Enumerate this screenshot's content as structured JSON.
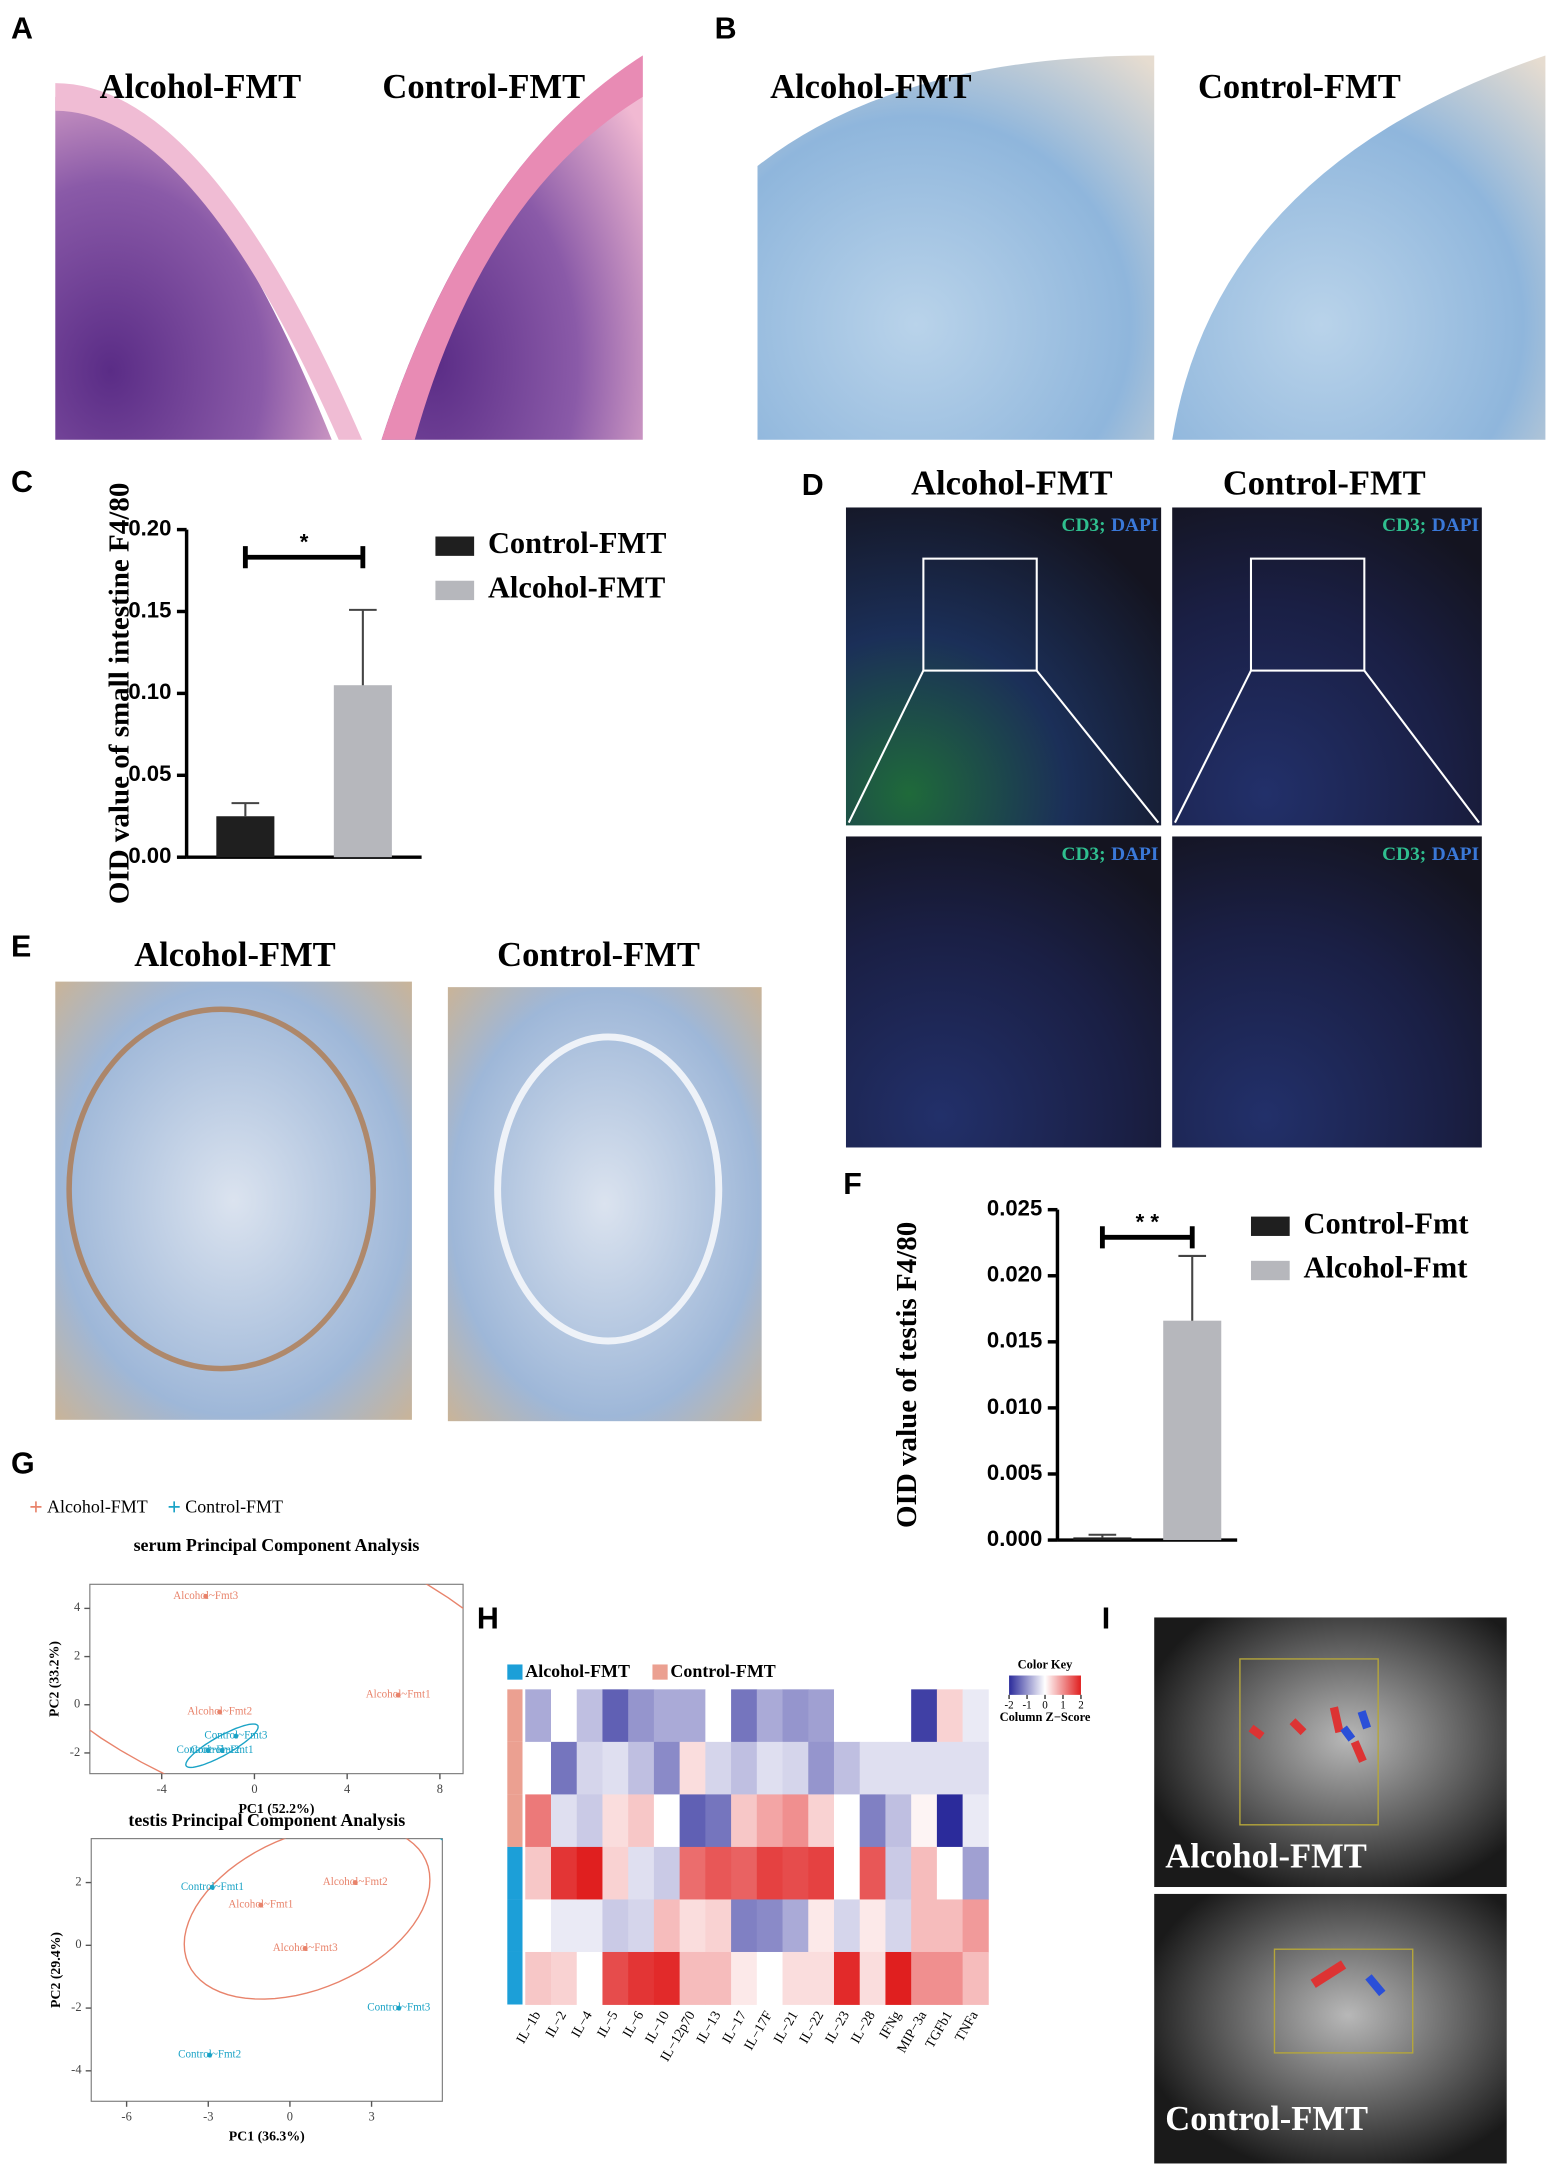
{
  "panel_labels": [
    "A",
    "B",
    "C",
    "D",
    "E",
    "F",
    "G",
    "H",
    "I"
  ],
  "panel_A": {
    "captions": [
      "Alcohol-FMT",
      "Control-FMT"
    ]
  },
  "panel_B": {
    "captions": [
      "Alcohol-FMT",
      "Control-FMT"
    ]
  },
  "panel_D": {
    "captions": [
      "Alcohol-FMT",
      "Control-FMT"
    ],
    "stains": [
      {
        "marker": "CD3;",
        "dye": "DAPI"
      },
      {
        "marker": "CD3;",
        "dye": "DAPI"
      },
      {
        "marker": "CD3;",
        "dye": "DAPI"
      },
      {
        "marker": "CD3;",
        "dye": "DAPI"
      }
    ]
  },
  "panel_E": {
    "captions": [
      "Alcohol-FMT",
      "Control-FMT"
    ]
  },
  "panel_I": {
    "captions": [
      "Alcohol-FMT",
      "Control-FMT"
    ]
  },
  "chart_data": [
    {
      "type": "bar",
      "y_label": "OID value of small intestine F4/80",
      "categories": [
        null,
        null
      ],
      "series": [
        {
          "name": "Control-FMT",
          "color": "#1f1f1f",
          "values": [
            0.025,
            null
          ],
          "errors": [
            0.008,
            null
          ]
        },
        {
          "name": "Alcohol-FMT",
          "color": "#b6b7bc",
          "values": [
            null,
            0.105
          ],
          "errors": [
            null,
            0.046
          ]
        }
      ],
      "ylim": [
        0,
        0.2
      ],
      "yticks": [
        {
          "value": 0,
          "label": "0.00"
        },
        {
          "value": 0.05,
          "label": "0.05"
        },
        {
          "value": 0.1,
          "label": "0.10"
        },
        {
          "value": 0.15,
          "label": "0.15"
        },
        {
          "value": 0.2,
          "label": "0.20"
        }
      ],
      "annotation": "*"
    },
    {
      "type": "bar",
      "y_label": "OID value of testis F4/80",
      "categories": [
        null,
        null
      ],
      "series": [
        {
          "name": "Control-Fmt",
          "color": "#1f1f1f",
          "values": [
            0.0002,
            null
          ],
          "errors": [
            0.0002,
            null
          ]
        },
        {
          "name": "Alcohol-Fmt",
          "color": "#b6b7bc",
          "values": [
            null,
            0.0166
          ],
          "errors": [
            null,
            0.0049
          ]
        }
      ],
      "ylim": [
        0,
        0.025
      ],
      "yticks": [
        {
          "value": 0,
          "label": "0.000"
        },
        {
          "value": 0.005,
          "label": "0.005"
        },
        {
          "value": 0.01,
          "label": "0.010"
        },
        {
          "value": 0.015,
          "label": "0.015"
        },
        {
          "value": 0.02,
          "label": "0.020"
        },
        {
          "value": 0.025,
          "label": "0.025"
        }
      ],
      "annotation": "* *"
    },
    {
      "type": "scatter",
      "title": "serum Principal Component Analysis",
      "x_label": "PC1 (52.2%)",
      "y_label": "PC2 (33.2%)",
      "xlim": [
        -7.1,
        9.0
      ],
      "ylim": [
        -2.86,
        5.0
      ],
      "xticks": [
        -4,
        0,
        4,
        8
      ],
      "yticks": [
        -2,
        0,
        2,
        4
      ],
      "series": [
        {
          "name": "Alcohol-FMT",
          "color": "#e8836b",
          "x": [
            6.2,
            -1.5,
            -2.1
          ],
          "values": [
            0.4,
            -0.3,
            4.5
          ],
          "labels": [
            "Alcohol~Fmt1",
            "Alcohol~Fmt2",
            "Alcohol~Fmt3"
          ]
        },
        {
          "name": "Control-FMT",
          "color": "#1ba3c6",
          "x": [
            -1.4,
            -2.0,
            -0.8
          ],
          "values": [
            -1.9,
            -1.9,
            -1.3
          ],
          "labels": [
            "Control~Fmt1",
            "Control~Fmt2",
            "Control~Fmt3"
          ]
        }
      ]
    },
    {
      "type": "scatter",
      "title": "testis Principal Component Analysis",
      "x_label": "PC1 (36.3%)",
      "y_label": "PC2 (29.4%)",
      "xlim": [
        -7.3,
        5.6
      ],
      "ylim": [
        -4.97,
        3.4
      ],
      "xticks": [
        -6,
        -3,
        0,
        3
      ],
      "yticks": [
        -4,
        -2,
        0,
        2
      ],
      "series": [
        {
          "color": "#e8836b",
          "x": [
            -1.07,
            2.4,
            0.56
          ],
          "values": [
            1.28,
            2.0,
            -0.1
          ],
          "labels": [
            "Alcohol~Fmt1",
            "Alcohol~Fmt2",
            "Alcohol~Fmt3"
          ]
        },
        {
          "color": "#1ba3c6",
          "x": [
            -2.85,
            -2.95,
            4.0
          ],
          "values": [
            1.85,
            -3.5,
            -2.0
          ],
          "labels": [
            "Control~Fmt1",
            "Control~Fmt2",
            "Control~Fmt3"
          ]
        }
      ]
    },
    {
      "type": "heatmap",
      "groups": [
        {
          "name": "Alcohol-FMT",
          "color": "#1c9fd8"
        },
        {
          "name": "Control-FMT",
          "color": "#eba091"
        }
      ],
      "columns": [
        "IL−1b",
        "IL−2",
        "IL−4",
        "IL−5",
        "IL−6",
        "IL−10",
        "IL−12p70",
        "IL−13",
        "IL−17",
        "IL−17F",
        "IL−21",
        "IL−22",
        "IL−23",
        "IL−28",
        "IFNg",
        "MIP−3a",
        "TGFb1",
        "TNFa"
      ],
      "rows": [
        {
          "group": "Control-FMT",
          "values": [
            -0.8,
            0,
            -0.6,
            -1.5,
            -1.0,
            -0.8,
            -0.8,
            0,
            -1.3,
            -0.8,
            -1.0,
            -0.9,
            0,
            0,
            0,
            -1.8,
            0.4,
            -0.2
          ]
        },
        {
          "group": "Control-FMT",
          "values": [
            0,
            -1.3,
            -0.4,
            -0.3,
            -0.6,
            -1.1,
            0.3,
            -0.4,
            -0.6,
            -0.3,
            -0.4,
            -1.0,
            -0.6,
            -0.3,
            -0.3,
            -0.3,
            -0.3,
            -0.3
          ]
        },
        {
          "group": "Control-FMT",
          "values": [
            1.2,
            -0.3,
            -0.5,
            0.3,
            0.5,
            0,
            -1.5,
            -1.3,
            0.5,
            0.8,
            1.0,
            0.4,
            0,
            -1.2,
            -0.6,
            0.1,
            -2.0,
            -0.2
          ]
        },
        {
          "group": "Alcohol-FMT",
          "values": [
            0.5,
            1.8,
            2.0,
            0.4,
            -0.3,
            -0.5,
            1.3,
            1.5,
            1.4,
            1.7,
            1.6,
            1.7,
            0,
            1.5,
            -0.5,
            0.6,
            0,
            -0.9
          ]
        },
        {
          "group": "Alcohol-FMT",
          "values": [
            0,
            -0.2,
            -0.2,
            -0.5,
            -0.4,
            0.6,
            0.3,
            0.4,
            -1.2,
            -1.1,
            -0.8,
            0.2,
            -0.4,
            0.2,
            -0.4,
            0.6,
            0.6,
            0.9
          ]
        },
        {
          "group": "Alcohol-FMT",
          "values": [
            0.5,
            0.4,
            0,
            1.6,
            1.8,
            1.9,
            0.6,
            0.6,
            0.2,
            0,
            0.3,
            0.3,
            1.9,
            0.3,
            2.0,
            1.0,
            1.0,
            0.6
          ]
        }
      ],
      "color_key_title": "Color Key",
      "color_key_label": "Column Z−Score",
      "zlim": [
        -2,
        2
      ],
      "zticks": [
        -2,
        -1,
        0,
        1,
        2
      ],
      "colors": [
        "#2b2b9b",
        "#ffffff",
        "#e01f1f"
      ]
    }
  ]
}
